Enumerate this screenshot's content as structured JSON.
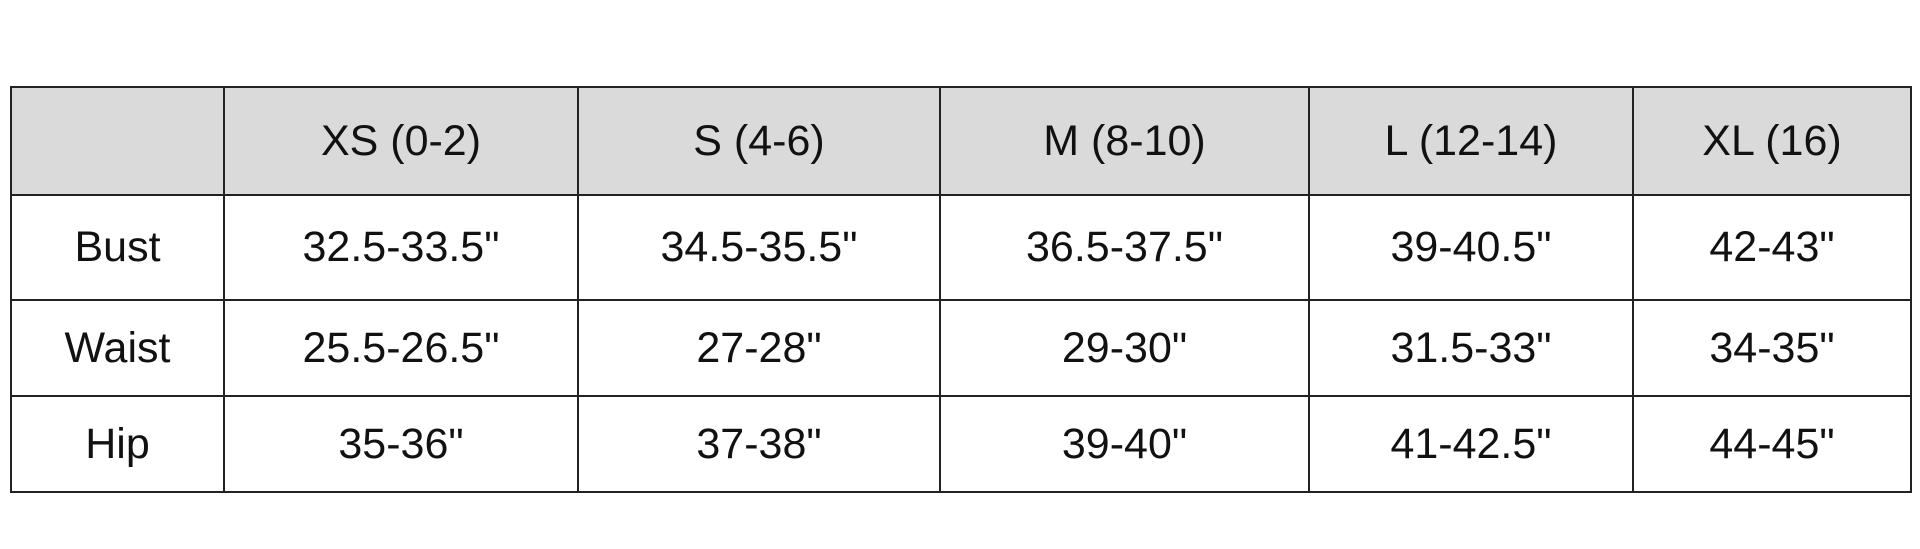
{
  "table": {
    "header_bg": "#dadada",
    "columns": [
      "",
      "XS (0-2)",
      "S (4-6)",
      "M (8-10)",
      "L (12-14)",
      "XL (16)"
    ],
    "rows": [
      {
        "label": "Bust",
        "values": [
          "32.5-33.5\"",
          "34.5-35.5\"",
          "36.5-37.5\"",
          "39-40.5\"",
          "42-43\""
        ]
      },
      {
        "label": "Waist",
        "values": [
          "25.5-26.5\"",
          "27-28\"",
          "29-30\"",
          "31.5-33\"",
          "34-35\""
        ]
      },
      {
        "label": "Hip",
        "values": [
          "35-36\"",
          "37-38\"",
          "39-40\"",
          "41-42.5\"",
          "44-45\""
        ]
      }
    ]
  }
}
